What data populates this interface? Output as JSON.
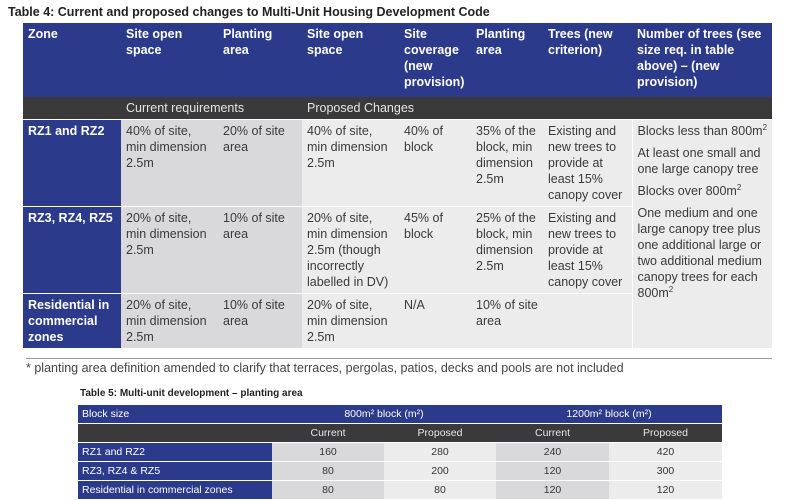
{
  "table4": {
    "caption": "Table 4: Current and proposed changes to Multi-Unit Housing Development Code",
    "headers": {
      "zone": "Zone",
      "site_open_space": "Site open space",
      "planting_area": "Planting area",
      "site_open_space_prop": "Site open space",
      "site_coverage": "Site coverage (new provision)",
      "planting_area_prop": "Planting area",
      "trees": "Trees (new criterion)",
      "number_of_trees": "Number of trees (see size req. in table above) – (new provision)"
    },
    "subheader": {
      "current": "Current requirements",
      "proposed": "Proposed Changes"
    },
    "rows": [
      {
        "zone": "RZ1 and RZ2",
        "cur_open": "40% of site, min dimension 2.5m",
        "cur_planting": "20% of site area",
        "prop_open": "40% of site, min dimension 2.5m",
        "coverage": "40% of block",
        "prop_planting": "35% of the block, min dimension 2.5m",
        "trees": "Existing and new trees to provide at least 15% canopy cover"
      },
      {
        "zone": "RZ3, RZ4, RZ5",
        "cur_open": "20% of site, min dimension 2.5m",
        "cur_planting": "10% of site area",
        "prop_open": "20% of site, min dimension 2.5m (though incorrectly labelled in DV)",
        "coverage": "45% of block",
        "prop_planting": "25% of the block, min dimension 2.5m",
        "trees": "Existing and new trees to provide at least 15% canopy cover"
      },
      {
        "zone": "Residential in commercial zones",
        "cur_open": "20% of site, min dimension 2.5m",
        "cur_planting": "10% of site area",
        "prop_open": "20% of site, min dimension 2.5m",
        "coverage": "N/A",
        "prop_planting": "10% of site area",
        "trees": ""
      }
    ],
    "number_of_trees": {
      "p1": "Blocks less than 800m",
      "p1_sup": "2",
      "p2": "At least one small and one large canopy tree",
      "p3": "Blocks over 800m",
      "p3_sup": "2",
      "p4": "One medium and one large canopy tree plus one additional large or two additional medium canopy trees for each 800m",
      "p4_sup": "2"
    },
    "footnote": "* planting area definition amended to clarify that terraces, pergolas, patios, decks and pools are not included"
  },
  "table5": {
    "caption": "Table 5: Multi-unit development – planting area",
    "header": {
      "block_size": "Block size",
      "b800": "800m² block (m²)",
      "b1200": "1200m² block (m²)"
    },
    "subheader": [
      "Current",
      "Proposed",
      "Current",
      "Proposed"
    ],
    "rows": [
      {
        "label": "RZ1 and RZ2",
        "values": [
          "160",
          "280",
          "240",
          "420"
        ]
      },
      {
        "label": "RZ3, RZ4 & RZ5",
        "values": [
          "80",
          "200",
          "120",
          "300"
        ]
      },
      {
        "label": "Residential in commercial zones",
        "values": [
          "80",
          "80",
          "120",
          "120"
        ]
      }
    ]
  }
}
